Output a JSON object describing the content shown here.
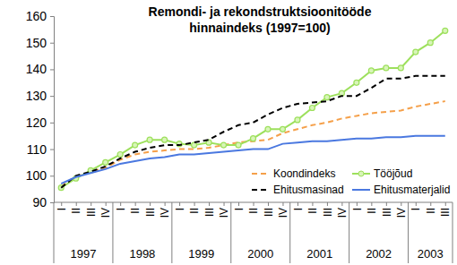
{
  "chart_data": {
    "type": "line",
    "title": "Remondi- ja rekondstruktsioonitööde hinnaindeks (1997=100)",
    "categories": [
      "I",
      "II",
      "III",
      "IV",
      "I",
      "II",
      "III",
      "IV",
      "I",
      "II",
      "III",
      "IV",
      "I",
      "II",
      "III",
      "IV",
      "I",
      "II",
      "III",
      "IV",
      "I",
      "II",
      "III",
      "IV",
      "I",
      "II",
      "III"
    ],
    "groups": [
      {
        "label": "1997",
        "size": 4
      },
      {
        "label": "1998",
        "size": 4
      },
      {
        "label": "1999",
        "size": 4
      },
      {
        "label": "2000",
        "size": 4
      },
      {
        "label": "2001",
        "size": 4
      },
      {
        "label": "2002",
        "size": 4
      },
      {
        "label": "2003",
        "size": 3
      }
    ],
    "series": [
      {
        "name": "Koondindeks",
        "color": "#f5a04a",
        "line_style": "dashed",
        "values": [
          96,
          99.5,
          101.5,
          103,
          106,
          108,
          109,
          109.5,
          110,
          110,
          110.5,
          111.5,
          112.5,
          113,
          113.5,
          116,
          117.5,
          119,
          120,
          121.5,
          122.5,
          123.5,
          124,
          124.5,
          126,
          127,
          128
        ]
      },
      {
        "name": "Tööjõud",
        "color": "#9de05c",
        "line_style": "solid",
        "marker": "circle",
        "values": [
          95.5,
          99,
          102,
          105,
          108,
          111.5,
          113.5,
          113.5,
          112,
          111.5,
          112.5,
          111.5,
          111.5,
          114,
          117.5,
          117.5,
          121,
          125.5,
          129.5,
          131,
          135,
          139.5,
          140.5,
          140.5,
          146.5,
          150,
          154.5
        ]
      },
      {
        "name": "Ehitusmasinad",
        "color": "#000000",
        "line_style": "dashed",
        "values": [
          95.5,
          100,
          101.5,
          103.5,
          106.5,
          109,
          110.5,
          111.5,
          111.5,
          112.5,
          113.5,
          116.5,
          119,
          120,
          123,
          125.5,
          127,
          127.5,
          128,
          130,
          130,
          133,
          136.5,
          136.5,
          137.5,
          137.5,
          137.5
        ]
      },
      {
        "name": "Ehitusmaterjalid",
        "color": "#4a78e0",
        "line_style": "solid",
        "values": [
          97,
          99.5,
          101,
          102.5,
          104.5,
          105.5,
          106.5,
          107,
          108,
          108,
          108.5,
          109,
          109.5,
          110,
          110,
          112,
          112.5,
          113,
          113,
          113.5,
          114,
          114,
          114.5,
          114.5,
          115,
          115,
          115
        ]
      }
    ],
    "ylim": [
      90,
      160
    ],
    "yticks": [
      90,
      100,
      110,
      120,
      130,
      140,
      150,
      160
    ],
    "grid": false,
    "legend": "lower right"
  }
}
